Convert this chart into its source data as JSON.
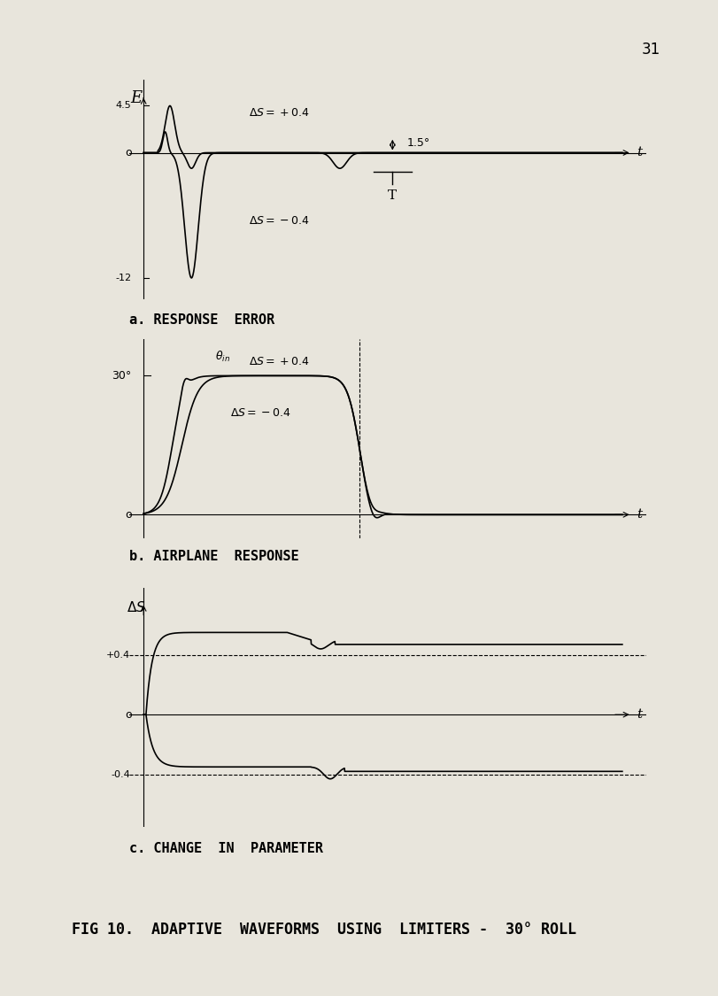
{
  "bg_color": "#e8e5dc",
  "page_num": "31",
  "title_a": "a. RESPONSE  ERROR",
  "title_b": "b. AIRPLANE  RESPONSE",
  "title_c": "c. CHANGE  IN  PARAMETER",
  "fig_title": "FIG 10.  ADAPTIVE  WAVEFORMS  USING  LIMITERS -  30° ROLL",
  "panel_a": {
    "ylabel": "E",
    "xlabel": "t",
    "yticks": [
      "-12",
      "0",
      "4.5"
    ],
    "label_pos_ds_pos": "ΔS = +0.4",
    "label_pos_ds_neg": "ΔS = -0.4",
    "scale_label": "1.5°"
  },
  "panel_b": {
    "ylabel": "30°",
    "xlabel": "t",
    "label_qin": "θin",
    "label_ds_pos": "ΔS = +0.4",
    "label_ds_neg": "ΔS = -0.4"
  },
  "panel_c": {
    "ylabel": "ΔS",
    "xlabel": "t",
    "dashed_pos": "+0.4",
    "dashed_neg": "-0.4"
  }
}
